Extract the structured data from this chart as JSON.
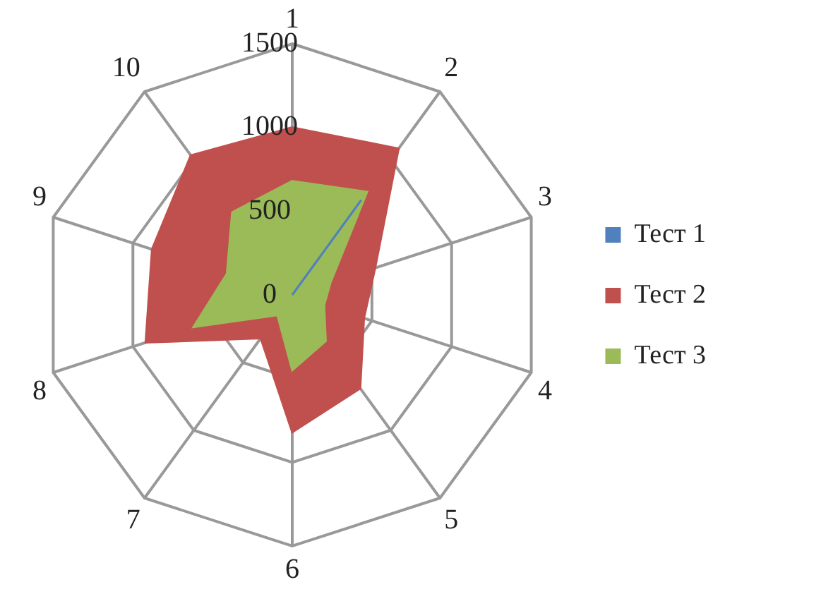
{
  "chart_data": {
    "type": "radar",
    "categories": [
      "1",
      "2",
      "3",
      "4",
      "5",
      "6",
      "7",
      "8",
      "9",
      "10"
    ],
    "series": [
      {
        "name": "Тест 1",
        "color": "#4f81bd",
        "values": [
          0,
          700,
          0,
          0,
          0,
          0,
          0,
          0,
          0,
          0
        ]
      },
      {
        "name": "Тест 2",
        "color": "#c0504d",
        "values": [
          1000,
          1080,
          520,
          450,
          690,
          820,
          320,
          920,
          880,
          1030
        ]
      },
      {
        "name": "Тест 3",
        "color": "#9bbb59",
        "values": [
          680,
          760,
          240,
          200,
          340,
          450,
          150,
          620,
          410,
          610
        ]
      }
    ],
    "ylim": [
      0,
      1500
    ],
    "yticks": [
      0,
      500,
      1000,
      1500
    ],
    "grid": true,
    "legend": "right"
  }
}
